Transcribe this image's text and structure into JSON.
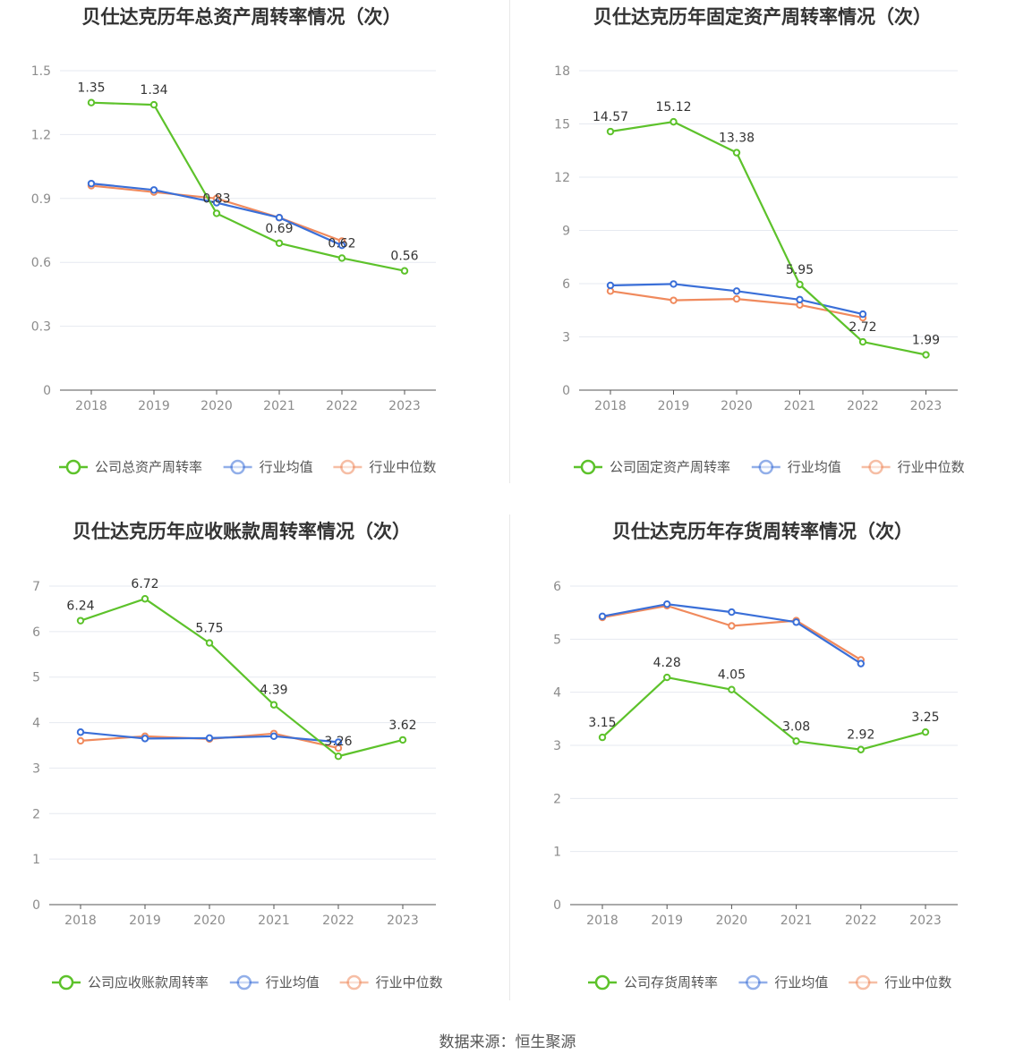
{
  "source": "数据来源：恒生聚源",
  "colors": {
    "company": "#5dc22b",
    "avg": "#3a6fd8",
    "median": "#f08a5d",
    "grid": "#e6e9f0",
    "axis": "#555555"
  },
  "chart_data": [
    {
      "type": "line",
      "title": "贝仕达克历年总资产周转率情况（次）",
      "categories": [
        "2018",
        "2019",
        "2020",
        "2021",
        "2022",
        "2023"
      ],
      "ylim": [
        0,
        1.5
      ],
      "yticks": [
        "0",
        "0.3",
        "0.6",
        "0.9",
        "1.2",
        "1.5"
      ],
      "yticks_values": [
        0,
        0.3,
        0.6,
        0.9,
        1.2,
        1.5
      ],
      "grid": true,
      "legend_position": "bottom",
      "series": [
        {
          "name": "公司总资产周转率",
          "values": [
            1.35,
            1.34,
            0.83,
            0.69,
            0.62,
            0.56
          ],
          "labels": [
            "1.35",
            "1.34",
            "0.83",
            "0.69",
            "0.62",
            "0.56"
          ]
        },
        {
          "name": "行业均值",
          "values": [
            0.97,
            0.94,
            0.88,
            0.81,
            0.68,
            null
          ]
        },
        {
          "name": "行业中位数",
          "values": [
            0.96,
            0.93,
            0.9,
            0.81,
            0.7,
            null
          ]
        }
      ]
    },
    {
      "type": "line",
      "title": "贝仕达克历年固定资产周转率情况（次）",
      "categories": [
        "2018",
        "2019",
        "2020",
        "2021",
        "2022",
        "2023"
      ],
      "ylim": [
        0,
        18
      ],
      "yticks": [
        "0",
        "3",
        "6",
        "9",
        "12",
        "15",
        "18"
      ],
      "yticks_values": [
        0,
        3,
        6,
        9,
        12,
        15,
        18
      ],
      "grid": true,
      "legend_position": "bottom",
      "series": [
        {
          "name": "公司固定资产周转率",
          "values": [
            14.57,
            15.12,
            13.38,
            5.95,
            2.72,
            1.99
          ],
          "labels": [
            "14.57",
            "15.12",
            "13.38",
            "5.95",
            "2.72",
            "1.99"
          ]
        },
        {
          "name": "行业均值",
          "values": [
            5.9,
            5.98,
            5.58,
            5.1,
            4.28,
            null
          ]
        },
        {
          "name": "行业中位数",
          "values": [
            5.58,
            5.06,
            5.14,
            4.8,
            4.08,
            null
          ]
        }
      ]
    },
    {
      "type": "line",
      "title": "贝仕达克历年应收账款周转率情况（次）",
      "categories": [
        "2018",
        "2019",
        "2020",
        "2021",
        "2022",
        "2023"
      ],
      "ylim": [
        0,
        7
      ],
      "yticks": [
        "0",
        "1",
        "2",
        "3",
        "4",
        "5",
        "6",
        "7"
      ],
      "yticks_values": [
        0,
        1,
        2,
        3,
        4,
        5,
        6,
        7
      ],
      "grid": true,
      "legend_position": "bottom",
      "series": [
        {
          "name": "公司应收账款周转率",
          "values": [
            6.24,
            6.72,
            5.75,
            4.39,
            3.26,
            3.62
          ],
          "labels": [
            "6.24",
            "6.72",
            "5.75",
            "4.39",
            "3.26",
            "3.62"
          ]
        },
        {
          "name": "行业均值",
          "values": [
            3.79,
            3.65,
            3.66,
            3.7,
            3.57,
            null
          ]
        },
        {
          "name": "行业中位数",
          "values": [
            3.6,
            3.7,
            3.64,
            3.76,
            3.44,
            null
          ]
        }
      ]
    },
    {
      "type": "line",
      "title": "贝仕达克历年存货周转率情况（次）",
      "categories": [
        "2018",
        "2019",
        "2020",
        "2021",
        "2022",
        "2023"
      ],
      "ylim": [
        0,
        6
      ],
      "yticks": [
        "0",
        "1",
        "2",
        "3",
        "4",
        "5",
        "6"
      ],
      "yticks_values": [
        0,
        1,
        2,
        3,
        4,
        5,
        6
      ],
      "grid": true,
      "legend_position": "bottom",
      "series": [
        {
          "name": "公司存货周转率",
          "values": [
            3.15,
            4.28,
            4.05,
            3.08,
            2.92,
            3.25
          ],
          "labels": [
            "3.15",
            "4.28",
            "4.05",
            "3.08",
            "2.92",
            "3.25"
          ]
        },
        {
          "name": "行业均值",
          "values": [
            5.43,
            5.66,
            5.51,
            5.32,
            4.54,
            null
          ]
        },
        {
          "name": "行业中位数",
          "values": [
            5.41,
            5.63,
            5.25,
            5.35,
            4.61,
            null
          ]
        }
      ]
    }
  ]
}
